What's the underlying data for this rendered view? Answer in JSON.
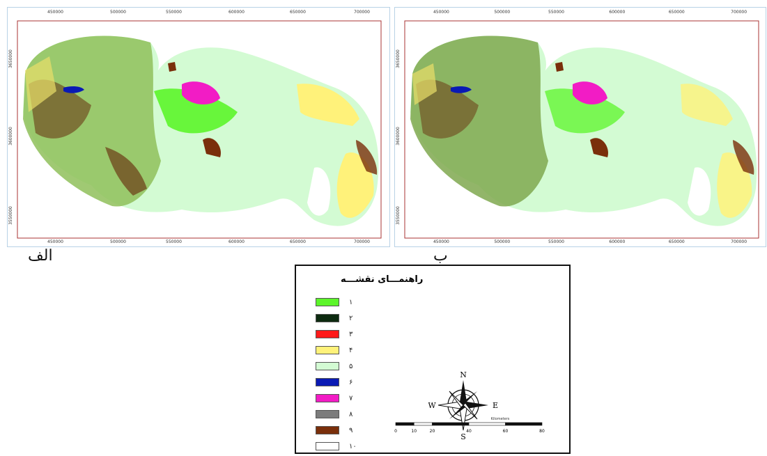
{
  "panels": [
    {
      "id": "a",
      "caption": "الف",
      "x_ticks": [
        "450000",
        "500000",
        "550000",
        "600000",
        "650000",
        "700000"
      ],
      "y_ticks": [
        "3650000",
        "3600000",
        "3550000"
      ]
    },
    {
      "id": "b",
      "caption": "ب",
      "x_ticks": [
        "450000",
        "500000",
        "550000",
        "600000",
        "650000",
        "700000"
      ],
      "y_ticks": [
        "3650000",
        "3600000",
        "3550000"
      ]
    }
  ],
  "legend": {
    "title": "راهنمـــای نقشـــه",
    "items": [
      {
        "label": "۱",
        "color": "#5cf52a"
      },
      {
        "label": "۲",
        "color": "#0d2b10"
      },
      {
        "label": "۳",
        "color": "#ff1a1a"
      },
      {
        "label": "۴",
        "color": "#fff27a"
      },
      {
        "label": "۵",
        "color": "#d3fbd3"
      },
      {
        "label": "۶",
        "color": "#0a1ab4"
      },
      {
        "label": "۷",
        "color": "#f21cc5"
      },
      {
        "label": "۸",
        "color": "#7c7c7c"
      },
      {
        "label": "۹",
        "color": "#7a2f0b"
      },
      {
        "label": "۱۰",
        "color": "#ffffff"
      }
    ]
  },
  "compass": {
    "n": "N",
    "s": "S",
    "e": "E",
    "w": "W"
  },
  "scalebar": {
    "unit": "Kilometers",
    "ticks": [
      "0",
      "10",
      "20",
      "40",
      "60",
      "80"
    ]
  }
}
